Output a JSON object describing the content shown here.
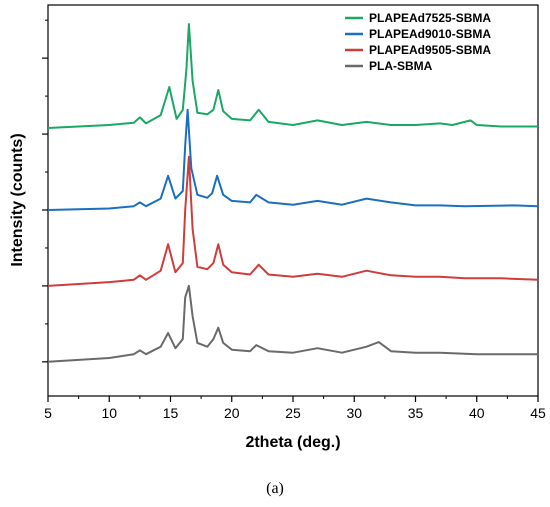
{
  "chart_data": {
    "type": "line",
    "title": "",
    "xlabel": "2theta (deg.)",
    "ylabel": "Intensity (counts)",
    "xlim": [
      5,
      45
    ],
    "x_ticks": [
      5,
      10,
      15,
      20,
      25,
      30,
      35,
      40,
      45
    ],
    "grid": false,
    "y_tick_labels": "none",
    "legend": "top-right",
    "caption": "(a)",
    "series": [
      {
        "name": "PLAPEAd7525-SBMA",
        "color": "#1aa865",
        "offset": 3,
        "x": [
          5,
          10,
          12,
          12.5,
          13,
          14.2,
          14.9,
          15.5,
          16,
          16.3,
          16.5,
          16.8,
          17.2,
          18,
          18.5,
          18.9,
          19.3,
          20,
          21.5,
          22.2,
          23,
          25,
          27,
          29,
          31,
          33,
          35,
          37,
          38,
          39.5,
          40,
          42,
          45
        ],
        "y": [
          0.08,
          0.12,
          0.15,
          0.22,
          0.14,
          0.25,
          0.62,
          0.2,
          0.32,
          0.85,
          1.45,
          0.7,
          0.28,
          0.26,
          0.32,
          0.58,
          0.3,
          0.2,
          0.18,
          0.32,
          0.16,
          0.12,
          0.18,
          0.12,
          0.16,
          0.12,
          0.12,
          0.14,
          0.12,
          0.18,
          0.12,
          0.1,
          0.1
        ]
      },
      {
        "name": "PLAPEAd9010-SBMA",
        "color": "#1a6fc0",
        "offset": 2,
        "x": [
          5,
          10,
          12,
          12.5,
          13,
          14.2,
          14.8,
          15.4,
          16,
          16.2,
          16.4,
          16.7,
          17.2,
          18,
          18.4,
          18.8,
          19.3,
          20,
          21.5,
          22,
          23,
          25,
          27,
          29,
          31,
          33,
          35,
          37,
          39,
          43,
          45
        ],
        "y": [
          0.0,
          0.02,
          0.05,
          0.1,
          0.05,
          0.15,
          0.45,
          0.15,
          0.25,
          0.85,
          1.32,
          0.55,
          0.2,
          0.16,
          0.22,
          0.45,
          0.2,
          0.12,
          0.1,
          0.2,
          0.1,
          0.07,
          0.12,
          0.07,
          0.15,
          0.1,
          0.06,
          0.06,
          0.05,
          0.06,
          0.05
        ]
      },
      {
        "name": "PLAPEAd9505-SBMA",
        "color": "#d03c3c",
        "offset": 1,
        "x": [
          5,
          10,
          12,
          12.5,
          13,
          14.2,
          14.8,
          15.4,
          16,
          16.2,
          16.5,
          16.8,
          17.2,
          18,
          18.5,
          18.9,
          19.3,
          20,
          21.5,
          22.2,
          23,
          25,
          27,
          29,
          31,
          33,
          35,
          37,
          39,
          42,
          45
        ],
        "y": [
          0.0,
          0.05,
          0.08,
          0.14,
          0.08,
          0.2,
          0.55,
          0.18,
          0.3,
          1.0,
          1.7,
          0.75,
          0.25,
          0.22,
          0.3,
          0.55,
          0.28,
          0.18,
          0.15,
          0.28,
          0.15,
          0.12,
          0.16,
          0.12,
          0.2,
          0.14,
          0.12,
          0.12,
          0.1,
          0.1,
          0.08
        ]
      },
      {
        "name": "PLA-SBMA",
        "color": "#6a6a6a",
        "offset": 0,
        "x": [
          5,
          10,
          12,
          12.5,
          13,
          14.2,
          14.8,
          15.4,
          16,
          16.2,
          16.5,
          16.8,
          17.2,
          18,
          18.5,
          18.9,
          19.3,
          20,
          21.5,
          22,
          23,
          25,
          27,
          29,
          31,
          32,
          33,
          35,
          37,
          40,
          43,
          45
        ],
        "y": [
          0.0,
          0.05,
          0.1,
          0.15,
          0.1,
          0.2,
          0.38,
          0.18,
          0.3,
          0.85,
          1.0,
          0.6,
          0.25,
          0.2,
          0.3,
          0.45,
          0.25,
          0.16,
          0.14,
          0.22,
          0.14,
          0.12,
          0.18,
          0.12,
          0.2,
          0.26,
          0.14,
          0.12,
          0.12,
          0.1,
          0.1,
          0.1
        ]
      }
    ]
  }
}
